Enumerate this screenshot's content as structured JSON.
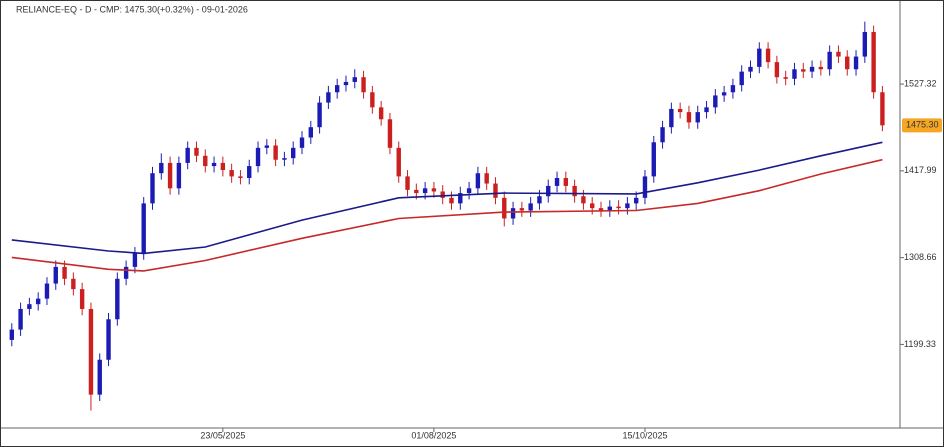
{
  "chart_data": {
    "type": "candlestick",
    "title": "RELIANCE-EQ - D - CMP: 1475.30(+0.32%) - 09-01-2026",
    "up_color": "#1c1cb4",
    "down_color": "#cc1f1f",
    "open": [
      1205,
      1218,
      1244,
      1250,
      1257,
      1276,
      1297,
      1282,
      1269,
      1244,
      1136,
      1180,
      1231,
      1282,
      1297,
      1314,
      1377,
      1415,
      1428,
      1396,
      1428,
      1447,
      1437,
      1424,
      1428,
      1419,
      1411,
      1409,
      1424,
      1447,
      1450,
      1432,
      1434,
      1447,
      1460,
      1473,
      1504,
      1517,
      1526,
      1530,
      1536,
      1517,
      1498,
      1483,
      1447,
      1411,
      1394,
      1390,
      1396,
      1392,
      1384,
      1377,
      1390,
      1396,
      1415,
      1402,
      1384,
      1358,
      1371,
      1368,
      1377,
      1386,
      1399,
      1409,
      1399,
      1386,
      1377,
      1371,
      1368,
      1373,
      1371,
      1377,
      1384,
      1411,
      1454,
      1473,
      1496,
      1492,
      1479,
      1492,
      1498,
      1513,
      1517,
      1526,
      1543,
      1549,
      1572,
      1555,
      1536,
      1534,
      1546,
      1543,
      1549,
      1546,
      1568,
      1562,
      1546,
      1562,
      1593,
      1517
    ],
    "high": [
      1226,
      1252,
      1258,
      1265,
      1284,
      1305,
      1305,
      1290,
      1277,
      1252,
      1188,
      1239,
      1290,
      1305,
      1322,
      1385,
      1423,
      1440,
      1436,
      1436,
      1455,
      1455,
      1445,
      1436,
      1436,
      1427,
      1419,
      1432,
      1455,
      1458,
      1458,
      1442,
      1455,
      1468,
      1481,
      1512,
      1525,
      1534,
      1538,
      1546,
      1544,
      1525,
      1506,
      1491,
      1455,
      1419,
      1402,
      1404,
      1404,
      1400,
      1392,
      1398,
      1404,
      1423,
      1423,
      1410,
      1392,
      1379,
      1379,
      1385,
      1394,
      1407,
      1417,
      1417,
      1407,
      1394,
      1385,
      1379,
      1381,
      1381,
      1385,
      1392,
      1419,
      1462,
      1481,
      1504,
      1504,
      1500,
      1500,
      1506,
      1521,
      1525,
      1534,
      1551,
      1557,
      1580,
      1580,
      1563,
      1544,
      1554,
      1554,
      1557,
      1557,
      1576,
      1576,
      1570,
      1570,
      1606,
      1601,
      1525
    ],
    "low": [
      1197,
      1210,
      1236,
      1242,
      1249,
      1268,
      1274,
      1261,
      1236,
      1116,
      1128,
      1172,
      1223,
      1274,
      1289,
      1306,
      1369,
      1407,
      1388,
      1388,
      1420,
      1429,
      1416,
      1416,
      1411,
      1403,
      1401,
      1401,
      1416,
      1439,
      1424,
      1424,
      1426,
      1439,
      1452,
      1465,
      1496,
      1509,
      1518,
      1522,
      1509,
      1490,
      1475,
      1439,
      1403,
      1386,
      1382,
      1382,
      1384,
      1376,
      1369,
      1369,
      1382,
      1388,
      1394,
      1376,
      1348,
      1350,
      1360,
      1360,
      1369,
      1378,
      1391,
      1391,
      1378,
      1369,
      1363,
      1360,
      1360,
      1363,
      1363,
      1369,
      1376,
      1403,
      1446,
      1465,
      1484,
      1471,
      1471,
      1484,
      1490,
      1505,
      1509,
      1518,
      1535,
      1541,
      1547,
      1528,
      1526,
      1526,
      1535,
      1535,
      1538,
      1538,
      1554,
      1538,
      1538,
      1554,
      1509,
      1468
    ],
    "close": [
      1218,
      1244,
      1250,
      1257,
      1276,
      1297,
      1282,
      1269,
      1244,
      1136,
      1180,
      1231,
      1282,
      1297,
      1314,
      1377,
      1415,
      1428,
      1396,
      1428,
      1447,
      1437,
      1424,
      1428,
      1419,
      1411,
      1409,
      1424,
      1447,
      1450,
      1432,
      1434,
      1447,
      1460,
      1473,
      1504,
      1517,
      1526,
      1530,
      1536,
      1517,
      1498,
      1483,
      1447,
      1411,
      1394,
      1390,
      1396,
      1392,
      1384,
      1377,
      1390,
      1396,
      1415,
      1402,
      1384,
      1358,
      1371,
      1368,
      1377,
      1386,
      1399,
      1409,
      1399,
      1386,
      1377,
      1371,
      1368,
      1373,
      1371,
      1377,
      1384,
      1411,
      1454,
      1473,
      1496,
      1492,
      1479,
      1492,
      1498,
      1513,
      1517,
      1526,
      1543,
      1549,
      1572,
      1555,
      1536,
      1534,
      1546,
      1543,
      1549,
      1546,
      1568,
      1562,
      1546,
      1562,
      1593,
      1517,
      1475.3
    ],
    "lines": [
      {
        "color": "#1a1a8c",
        "x": [
          0,
          11,
          15,
          22,
          33,
          44,
          56,
          71,
          78,
          85,
          92,
          99
        ],
        "values": [
          1331,
          1317,
          1314,
          1322,
          1356,
          1384,
          1390,
          1389,
          1403,
          1419,
          1437,
          1454
        ]
      },
      {
        "color": "#c82828",
        "x": [
          0,
          11,
          15,
          22,
          33,
          44,
          56,
          71,
          78,
          85,
          92,
          99
        ],
        "values": [
          1309,
          1294,
          1292,
          1305,
          1333,
          1358,
          1366,
          1368,
          1377,
          1393,
          1414,
          1432
        ]
      }
    ],
    "last_price": {
      "value": 1475.3,
      "label": "1475.30"
    },
    "last_price_color": "#f5a623",
    "xlim": [
      -1,
      101
    ],
    "xticks": [
      {
        "value": 24,
        "label": "23/05/2025"
      },
      {
        "value": 48,
        "label": "01/08/2025"
      },
      {
        "value": 72,
        "label": "15/10/2025"
      }
    ],
    "ylim": [
      1094,
      1632
    ],
    "yticks": [
      1199.33,
      1308.66,
      1417.99,
      1527.32
    ]
  }
}
